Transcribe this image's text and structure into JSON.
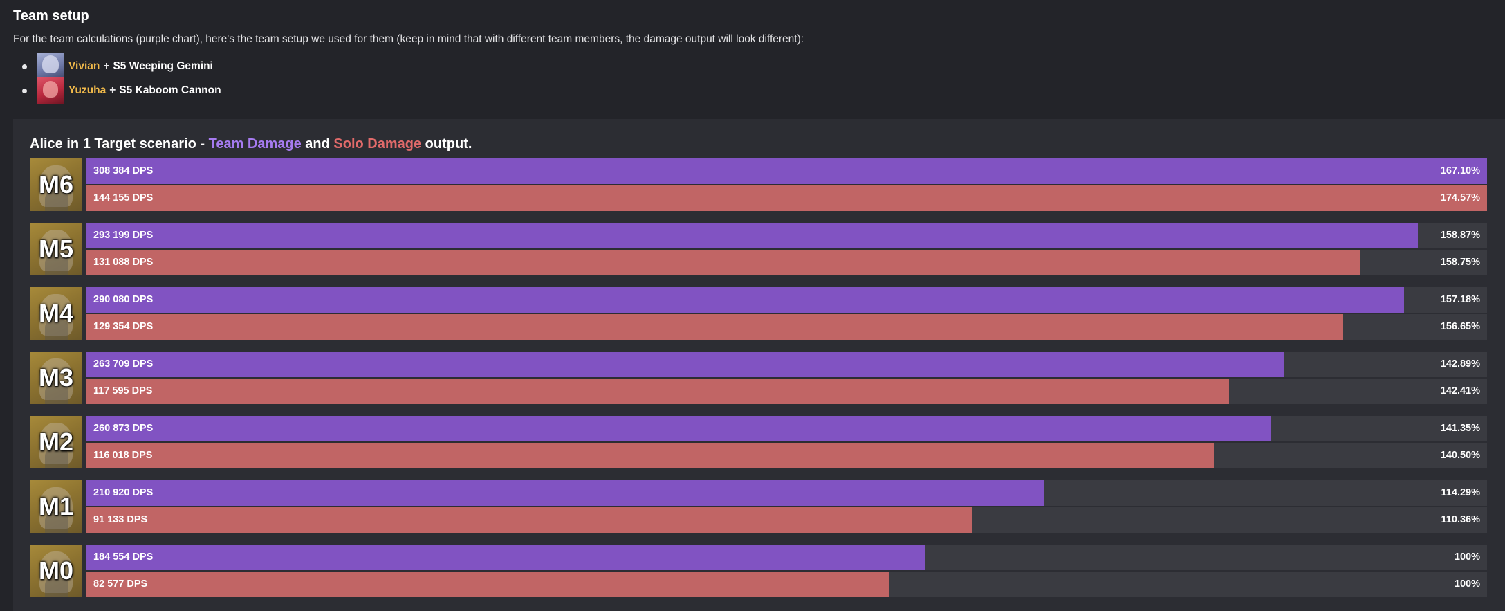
{
  "section_title": "Team setup",
  "intro": "For the team calculations (purple chart), here's the team setup we used for them (keep in mind that with different team members, the damage output will look different):",
  "team": [
    {
      "name": "Vivian",
      "plus": "+",
      "weapon": "S5 Weeping Gemini",
      "avatar": "vivian"
    },
    {
      "name": "Yuzuha",
      "plus": "+",
      "weapon": "S5 Kaboom Cannon",
      "avatar": "yuzuha"
    }
  ],
  "colors": {
    "team": "#8153c2",
    "solo": "#c16565",
    "track": "#3a3b41",
    "name": "#f0b94a"
  },
  "chart_data": {
    "type": "bar",
    "orientation": "horizontal",
    "title_parts": {
      "prefix": "Alice in 1 Target scenario - ",
      "team": "Team Damage",
      "mid": " and ",
      "solo": "Solo Damage",
      "suffix": " output."
    },
    "categories": [
      "M6",
      "M5",
      "M4",
      "M3",
      "M2",
      "M1",
      "M0"
    ],
    "series": [
      {
        "name": "Team Damage",
        "color": "#8153c2",
        "values": [
          308384,
          293199,
          290080,
          263709,
          260873,
          210920,
          184554
        ],
        "labels": [
          "308 384 DPS",
          "293 199 DPS",
          "290 080 DPS",
          "263 709 DPS",
          "260 873 DPS",
          "210 920 DPS",
          "184 554 DPS"
        ],
        "percent_labels": [
          "167.10%",
          "158.87%",
          "157.18%",
          "142.89%",
          "141.35%",
          "114.29%",
          "100%"
        ]
      },
      {
        "name": "Solo Damage",
        "color": "#c16565",
        "values": [
          144155,
          131088,
          129354,
          117595,
          116018,
          91133,
          82577
        ],
        "labels": [
          "144 155 DPS",
          "131 088 DPS",
          "129 354 DPS",
          "117 595 DPS",
          "116 018 DPS",
          "91 133 DPS",
          "82 577 DPS"
        ],
        "percent_labels": [
          "174.57%",
          "158.75%",
          "156.65%",
          "142.41%",
          "140.50%",
          "110.36%",
          "100%"
        ]
      }
    ]
  }
}
